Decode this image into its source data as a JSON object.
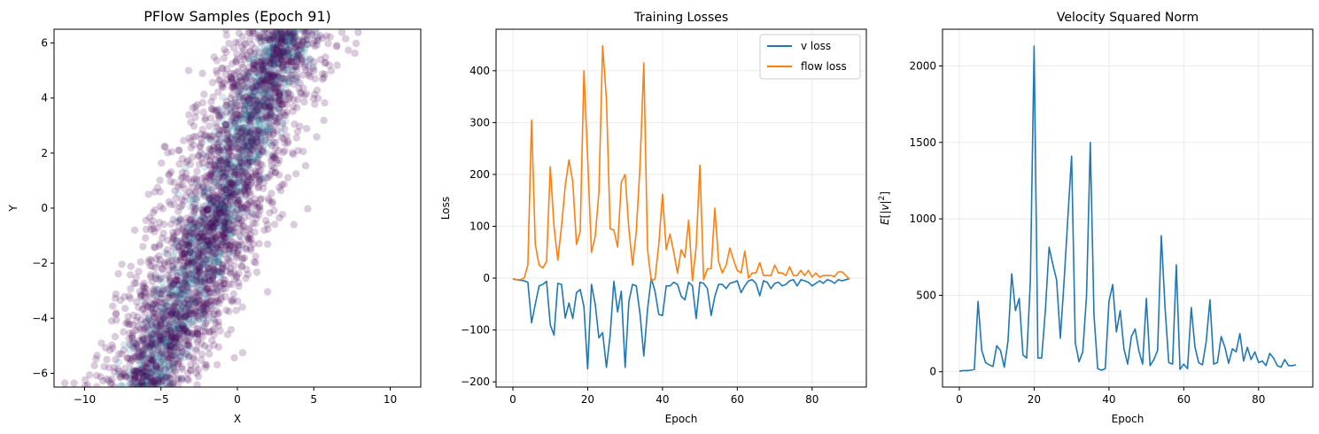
{
  "colors": {
    "v_loss": "#1f77b4",
    "flow_loss": "#ff7f0e",
    "scatter_point": "#440154",
    "scatter_dense": "#2f8aa0",
    "grid": "#e6e6e6",
    "axis": "#000000"
  },
  "chart_data": [
    {
      "type": "scatter",
      "title": "PFlow Samples (Epoch 91)",
      "xlabel": "X",
      "ylabel": "Y",
      "xlim": [
        -12,
        12
      ],
      "ylim": [
        -6.5,
        6.5
      ],
      "xticks": [
        -10,
        -5,
        0,
        5,
        10
      ],
      "yticks": [
        -6,
        -4,
        -2,
        0,
        2,
        4,
        6
      ],
      "grid": false,
      "distribution": {
        "shape": "diagonal band",
        "center_line": [
          [
            -6,
            -6.5
          ],
          [
            -2.5,
            -2
          ],
          [
            0,
            2
          ],
          [
            1.5,
            4
          ],
          [
            3.5,
            6.5
          ]
        ],
        "band_halfwidth_x": 3,
        "outlier_extent_x": [
          -10.5,
          10.5
        ]
      }
    },
    {
      "type": "line",
      "title": "Training Losses",
      "xlabel": "Epoch",
      "ylabel": "Loss",
      "xlim": [
        -4.5,
        94.5
      ],
      "ylim": [
        -210,
        480
      ],
      "xticks": [
        0,
        20,
        40,
        60,
        80
      ],
      "yticks": [
        -200,
        -100,
        0,
        100,
        200,
        300,
        400
      ],
      "grid": true,
      "legend_position": "top-right",
      "series": [
        {
          "name": "v loss",
          "color": "#1f77b4",
          "x": [
            0,
            1,
            2,
            3,
            4,
            5,
            6,
            7,
            8,
            9,
            10,
            11,
            12,
            13,
            14,
            15,
            16,
            17,
            18,
            19,
            20,
            21,
            22,
            23,
            24,
            25,
            26,
            27,
            28,
            29,
            30,
            31,
            32,
            33,
            34,
            35,
            36,
            37,
            38,
            39,
            40,
            41,
            42,
            43,
            44,
            45,
            46,
            47,
            48,
            49,
            50,
            51,
            52,
            53,
            54,
            55,
            56,
            57,
            58,
            59,
            60,
            61,
            62,
            63,
            64,
            65,
            66,
            67,
            68,
            69,
            70,
            71,
            72,
            73,
            74,
            75,
            76,
            77,
            78,
            79,
            80,
            81,
            82,
            83,
            84,
            85,
            86,
            87,
            88,
            89,
            90
          ],
          "values": [
            -2,
            -3,
            -4,
            -5,
            -8,
            -86,
            -50,
            -15,
            -12,
            -6,
            -90,
            -110,
            -10,
            -12,
            -77,
            -48,
            -78,
            -28,
            -22,
            -55,
            -175,
            -12,
            -50,
            -115,
            -105,
            -172,
            -110,
            -6,
            -65,
            -25,
            -172,
            -45,
            -12,
            -15,
            -70,
            -150,
            -60,
            0,
            -25,
            -70,
            -72,
            -15,
            -15,
            -8,
            -12,
            -35,
            -42,
            -8,
            -15,
            -78,
            -8,
            -10,
            -20,
            -72,
            -35,
            -12,
            -12,
            -20,
            -10,
            -8,
            -5,
            -28,
            -15,
            -5,
            -3,
            -10,
            -34,
            -5,
            -8,
            -20,
            -10,
            -8,
            -15,
            -12,
            -5,
            -3,
            -15,
            -3,
            -5,
            -8,
            -15,
            -10,
            -5,
            -10,
            -3,
            -5,
            -10,
            -3,
            -5,
            -3,
            -1
          ]
        },
        {
          "name": "flow loss",
          "color": "#ff7f0e",
          "x": [
            0,
            1,
            2,
            3,
            4,
            5,
            6,
            7,
            8,
            9,
            10,
            11,
            12,
            13,
            14,
            15,
            16,
            17,
            18,
            19,
            20,
            21,
            22,
            23,
            24,
            25,
            26,
            27,
            28,
            29,
            30,
            31,
            32,
            33,
            34,
            35,
            36,
            37,
            38,
            39,
            40,
            41,
            42,
            43,
            44,
            45,
            46,
            47,
            48,
            49,
            50,
            51,
            52,
            53,
            54,
            55,
            56,
            57,
            58,
            59,
            60,
            61,
            62,
            63,
            64,
            65,
            66,
            67,
            68,
            69,
            70,
            71,
            72,
            73,
            74,
            75,
            76,
            77,
            78,
            79,
            80,
            81,
            82,
            83,
            84,
            85,
            86,
            87,
            88,
            89,
            90
          ],
          "values": [
            -1,
            -3,
            -3,
            0,
            25,
            305,
            65,
            25,
            20,
            32,
            215,
            100,
            35,
            100,
            178,
            228,
            185,
            65,
            90,
            400,
            230,
            50,
            80,
            165,
            448,
            345,
            95,
            93,
            60,
            185,
            200,
            95,
            25,
            90,
            220,
            415,
            55,
            -5,
            -2,
            65,
            162,
            55,
            85,
            50,
            10,
            55,
            40,
            112,
            -5,
            60,
            218,
            -3,
            18,
            18,
            135,
            32,
            10,
            25,
            58,
            35,
            15,
            10,
            52,
            0,
            10,
            10,
            30,
            5,
            5,
            5,
            25,
            10,
            10,
            5,
            22,
            5,
            5,
            15,
            5,
            15,
            2,
            10,
            2,
            5,
            5,
            5,
            3,
            12,
            12,
            5,
            -2
          ]
        }
      ]
    },
    {
      "type": "line",
      "title": "Velocity Squared Norm",
      "xlabel": "Epoch",
      "ylabel": "E[|v|²]",
      "ylabel_parts": [
        "E",
        "[|",
        "v",
        "|",
        "2",
        "]"
      ],
      "xlim": [
        -4.5,
        94.5
      ],
      "ylim": [
        -100,
        2240
      ],
      "xticks": [
        0,
        20,
        40,
        60,
        80
      ],
      "yticks": [
        0,
        500,
        1000,
        1500,
        2000
      ],
      "grid": true,
      "series": [
        {
          "color": "#1f77b4",
          "x": [
            0,
            1,
            2,
            3,
            4,
            5,
            6,
            7,
            8,
            9,
            10,
            11,
            12,
            13,
            14,
            15,
            16,
            17,
            18,
            19,
            20,
            21,
            22,
            23,
            24,
            25,
            26,
            27,
            28,
            29,
            30,
            31,
            32,
            33,
            34,
            35,
            36,
            37,
            38,
            39,
            40,
            41,
            42,
            43,
            44,
            45,
            46,
            47,
            48,
            49,
            50,
            51,
            52,
            53,
            54,
            55,
            56,
            57,
            58,
            59,
            60,
            61,
            62,
            63,
            64,
            65,
            66,
            67,
            68,
            69,
            70,
            71,
            72,
            73,
            74,
            75,
            76,
            77,
            78,
            79,
            80,
            81,
            82,
            83,
            84,
            85,
            86,
            87,
            88,
            89,
            90
          ],
          "values": [
            5,
            8,
            8,
            10,
            15,
            460,
            140,
            60,
            45,
            35,
            170,
            140,
            30,
            200,
            640,
            400,
            480,
            110,
            90,
            600,
            2130,
            90,
            90,
            400,
            815,
            700,
            600,
            220,
            590,
            1000,
            1410,
            190,
            65,
            130,
            500,
            1500,
            370,
            20,
            10,
            20,
            460,
            570,
            260,
            400,
            150,
            50,
            230,
            280,
            135,
            50,
            480,
            40,
            80,
            140,
            890,
            420,
            60,
            50,
            700,
            15,
            50,
            20,
            420,
            160,
            60,
            45,
            200,
            470,
            50,
            60,
            230,
            160,
            55,
            150,
            130,
            250,
            70,
            160,
            80,
            130,
            60,
            70,
            40,
            120,
            90,
            40,
            30,
            80,
            40,
            40,
            45
          ]
        }
      ]
    }
  ]
}
